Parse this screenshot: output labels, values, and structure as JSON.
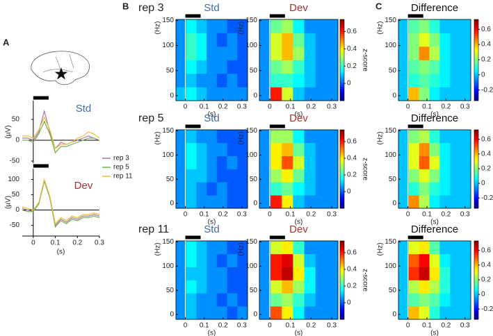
{
  "chart_data": [
    {
      "type": "line",
      "panel": "A",
      "title": "Std",
      "title_color": "#3d6ea8",
      "x": [
        -0.05,
        -0.025,
        0,
        0.025,
        0.05,
        0.075,
        0.1,
        0.125,
        0.15,
        0.175,
        0.2,
        0.225,
        0.25,
        0.275,
        0.3
      ],
      "xlim": [
        -0.05,
        0.3
      ],
      "ylim": [
        -55,
        95
      ],
      "yticks": [
        -50,
        0,
        50
      ],
      "ylabel": "(µV)",
      "legend": true,
      "series": [
        {
          "name": "rep 3",
          "color": "#b070b0",
          "values": [
            5,
            5,
            0,
            20,
            70,
            20,
            -20,
            -5,
            -10,
            -5,
            0,
            5,
            10,
            5,
            0
          ]
        },
        {
          "name": "rep 5",
          "color": "#70b050",
          "values": [
            0,
            0,
            -5,
            15,
            45,
            15,
            -30,
            -15,
            -15,
            -10,
            -5,
            0,
            5,
            5,
            0
          ]
        },
        {
          "name": "rep 11",
          "color": "#e8c030",
          "values": [
            10,
            10,
            5,
            25,
            55,
            25,
            -20,
            -10,
            -10,
            -5,
            5,
            10,
            20,
            15,
            5
          ]
        }
      ]
    },
    {
      "type": "line",
      "title": "Dev",
      "title_color": "#a83232",
      "x": [
        -0.05,
        -0.025,
        0,
        0.025,
        0.05,
        0.075,
        0.1,
        0.125,
        0.15,
        0.175,
        0.2,
        0.225,
        0.25,
        0.275,
        0.3
      ],
      "xlim": [
        -0.05,
        0.3
      ],
      "ylim": [
        -85,
        135
      ],
      "yticks": [
        -50,
        0,
        50,
        100
      ],
      "xticks": [
        0,
        0.1,
        0.2,
        0.3
      ],
      "xlabel": "(s)",
      "ylabel": "(µV)",
      "series": [
        {
          "color": "#b070b0",
          "values": [
            5,
            0,
            -5,
            20,
            95,
            40,
            -50,
            -30,
            -40,
            -25,
            -30,
            -20,
            -20,
            -15,
            -20
          ]
        },
        {
          "color": "#70b050",
          "values": [
            0,
            -5,
            -5,
            20,
            95,
            40,
            -55,
            -35,
            -45,
            -30,
            -35,
            -25,
            -25,
            -20,
            -25
          ]
        },
        {
          "color": "#e8c030",
          "values": [
            10,
            5,
            0,
            25,
            100,
            45,
            -45,
            -25,
            -35,
            -20,
            -25,
            -15,
            -15,
            -10,
            -15
          ]
        }
      ]
    },
    {
      "type": "heatmap",
      "panel": "B",
      "row_label": "rep 3",
      "title": "Std",
      "title_color": "#3d6ea8",
      "xlim": [
        -0.05,
        0.33
      ],
      "ylim": [
        -10,
        152
      ],
      "xticks": [
        0,
        0.1,
        0.2,
        0.3
      ],
      "yticks": [
        0,
        50,
        100,
        150
      ],
      "xlabel": "(s)",
      "ylabel": "(Hz)",
      "colormap": "jet",
      "clim": [
        -0.2,
        0.74
      ],
      "z": [
        [
          0.1,
          0.15,
          0.1,
          0.05,
          0.05,
          0.05,
          0.05
        ],
        [
          0.05,
          0.1,
          0.05,
          0.05,
          0,
          0.05,
          0
        ],
        [
          0.05,
          0.15,
          0.1,
          0.05,
          0.05,
          0,
          0
        ],
        [
          0.05,
          0.2,
          0.15,
          0.05,
          0.05,
          0.05,
          0
        ],
        [
          0.05,
          0.2,
          0.15,
          0.05,
          0,
          0.05,
          0
        ],
        [
          0.05,
          0.15,
          0.1,
          0.05,
          0.05,
          0,
          0
        ]
      ]
    },
    {
      "type": "heatmap",
      "title": "Dev",
      "title_color": "#a83232",
      "xlim": [
        -0.05,
        0.33
      ],
      "ylim": [
        -10,
        152
      ],
      "xticks": [
        0,
        0.1,
        0.2,
        0.3
      ],
      "yticks": [
        0,
        50,
        100,
        150
      ],
      "xlabel": "(s)",
      "ylabel": "(Hz)",
      "colormap": "jet",
      "clim": [
        -0.2,
        0.74
      ],
      "colorbar": true,
      "colorbar_label": "z-score",
      "cticks": [
        0,
        0.2,
        0.4,
        0.6
      ],
      "z": [
        [
          0.05,
          0.6,
          0.35,
          0.1,
          0.05,
          0.05,
          0.05
        ],
        [
          0.05,
          0.2,
          0.2,
          0.15,
          0.1,
          0.05,
          0.05
        ],
        [
          0.05,
          0.25,
          0.3,
          0.2,
          0.1,
          0.05,
          0.05
        ],
        [
          0.05,
          0.35,
          0.45,
          0.3,
          0.1,
          0.05,
          0.05
        ],
        [
          0.05,
          0.35,
          0.45,
          0.25,
          0.1,
          0.05,
          0.05
        ],
        [
          0.05,
          0.25,
          0.3,
          0.15,
          0.05,
          0.05,
          0.05
        ]
      ]
    },
    {
      "type": "heatmap",
      "panel": "C",
      "title": "Difference",
      "title_color": "#111111",
      "xlim": [
        -0.05,
        0.33
      ],
      "ylim": [
        -10,
        152
      ],
      "xticks": [
        0,
        0.1,
        0.2,
        0.3
      ],
      "yticks": [
        0,
        50,
        100,
        150
      ],
      "xlabel": "(s)",
      "ylabel": "(Hz)",
      "colormap": "jet",
      "clim": [
        -0.34,
        0.73
      ],
      "colorbar": true,
      "cticks": [
        -0.2,
        0,
        0.2,
        0.4,
        0.6
      ],
      "z": [
        [
          0,
          0.4,
          0.2,
          0.05,
          0,
          0,
          0
        ],
        [
          0,
          0.1,
          0.15,
          0.1,
          0.05,
          0,
          0
        ],
        [
          0,
          0.15,
          0.2,
          0.15,
          0.05,
          0,
          0
        ],
        [
          0,
          0.2,
          0.45,
          0.25,
          0.05,
          0,
          0
        ],
        [
          0,
          0.2,
          0.3,
          0.2,
          0.05,
          0,
          0
        ],
        [
          0,
          0.15,
          0.2,
          0.1,
          0,
          0,
          0
        ]
      ]
    },
    {
      "type": "heatmap",
      "row_label": "rep 5",
      "title": "Std",
      "title_color": "#3d6ea8",
      "xlim": [
        -0.05,
        0.33
      ],
      "ylim": [
        -10,
        152
      ],
      "xticks": [
        0,
        0.1,
        0.2,
        0.3
      ],
      "yticks": [
        0,
        50,
        100,
        150
      ],
      "xlabel": "(s)",
      "ylabel": "(Hz)",
      "colormap": "jet",
      "clim": [
        -0.2,
        0.74
      ],
      "z": [
        [
          0.05,
          0.1,
          0.05,
          0.05,
          0.05,
          0,
          0
        ],
        [
          0.05,
          0.1,
          0.05,
          0,
          0.05,
          0,
          0
        ],
        [
          0.05,
          0.1,
          0.1,
          0.05,
          0,
          0,
          0
        ],
        [
          0.05,
          0.15,
          0.1,
          0.05,
          0,
          0.05,
          0
        ],
        [
          0.05,
          0.15,
          0.1,
          0.05,
          0.05,
          0,
          0
        ],
        [
          0.05,
          0.1,
          0.05,
          0.05,
          0,
          0,
          0
        ]
      ]
    },
    {
      "type": "heatmap",
      "title": "Dev",
      "title_color": "#a83232",
      "xlim": [
        -0.05,
        0.33
      ],
      "ylim": [
        -10,
        152
      ],
      "xticks": [
        0,
        0.1,
        0.2,
        0.3
      ],
      "yticks": [
        0,
        50,
        100,
        150
      ],
      "xlabel": "(s)",
      "ylabel": "(Hz)",
      "colormap": "jet",
      "clim": [
        -0.2,
        0.74
      ],
      "colorbar": true,
      "colorbar_label": "z-score",
      "cticks": [
        0,
        0.2,
        0.4,
        0.6
      ],
      "z": [
        [
          0.05,
          0.6,
          0.4,
          0.1,
          0.05,
          0.05,
          0.05
        ],
        [
          0.05,
          0.2,
          0.25,
          0.15,
          0.1,
          0.05,
          0.05
        ],
        [
          0.05,
          0.3,
          0.4,
          0.25,
          0.1,
          0.05,
          0.05
        ],
        [
          0.05,
          0.4,
          0.55,
          0.35,
          0.1,
          0.05,
          0.05
        ],
        [
          0.05,
          0.4,
          0.45,
          0.25,
          0.1,
          0.05,
          0.05
        ],
        [
          0.05,
          0.3,
          0.3,
          0.15,
          0.05,
          0.05,
          0.05
        ]
      ]
    },
    {
      "type": "heatmap",
      "title": "Difference",
      "title_color": "#111111",
      "xlim": [
        -0.05,
        0.33
      ],
      "ylim": [
        -10,
        152
      ],
      "xticks": [
        0,
        0.1,
        0.2,
        0.3
      ],
      "yticks": [
        0,
        50,
        100,
        150
      ],
      "xlabel": "(s)",
      "ylabel": "(Hz)",
      "colormap": "jet",
      "clim": [
        -0.34,
        0.73
      ],
      "colorbar": true,
      "cticks": [
        -0.2,
        0,
        0.2,
        0.4,
        0.6
      ],
      "z": [
        [
          0,
          0.45,
          0.25,
          0.05,
          0,
          0,
          0
        ],
        [
          0,
          0.1,
          0.2,
          0.1,
          0.05,
          0,
          0
        ],
        [
          0,
          0.2,
          0.3,
          0.2,
          0.05,
          0,
          0
        ],
        [
          0,
          0.3,
          0.5,
          0.3,
          0.05,
          0,
          0
        ],
        [
          0,
          0.3,
          0.45,
          0.2,
          0.05,
          0,
          0
        ],
        [
          0,
          0.2,
          0.25,
          0.1,
          0,
          0,
          0
        ]
      ]
    },
    {
      "type": "heatmap",
      "row_label": "rep 11",
      "title": "Std",
      "title_color": "#3d6ea8",
      "xlim": [
        -0.05,
        0.33
      ],
      "ylim": [
        -10,
        152
      ],
      "xticks": [
        0,
        0.1,
        0.2,
        0.3
      ],
      "yticks": [
        0,
        50,
        100,
        150
      ],
      "xlabel": "(s)",
      "ylabel": "(Hz)",
      "colormap": "jet",
      "clim": [
        -0.2,
        0.74
      ],
      "z": [
        [
          0.05,
          0.1,
          0.05,
          0.05,
          0.05,
          0,
          0.05
        ],
        [
          0.05,
          0.1,
          0.05,
          0.05,
          0,
          0.05,
          0
        ],
        [
          0.05,
          0.15,
          0.1,
          0.05,
          0.05,
          0,
          0
        ],
        [
          0.05,
          0.1,
          0.1,
          0.05,
          0.05,
          0,
          0
        ],
        [
          0.05,
          0.15,
          0.1,
          0.05,
          0,
          0.05,
          0
        ],
        [
          0.05,
          0.15,
          0.1,
          0.05,
          0.05,
          0,
          0
        ]
      ]
    },
    {
      "type": "heatmap",
      "title": "Dev",
      "title_color": "#a83232",
      "xlim": [
        -0.05,
        0.33
      ],
      "ylim": [
        -10,
        152
      ],
      "xticks": [
        0,
        0.1,
        0.2,
        0.3
      ],
      "yticks": [
        0,
        50,
        100,
        150
      ],
      "xlabel": "(s)",
      "ylabel": "(Hz)",
      "colormap": "jet",
      "clim": [
        -0.2,
        0.74
      ],
      "colorbar": true,
      "colorbar_label": "z-score",
      "cticks": [
        0,
        0.2,
        0.4,
        0.6
      ],
      "z": [
        [
          0.05,
          0.55,
          0.4,
          0.15,
          0.05,
          0.05,
          0.05
        ],
        [
          0.05,
          0.25,
          0.3,
          0.2,
          0.1,
          0.05,
          0.05
        ],
        [
          0.05,
          0.35,
          0.45,
          0.3,
          0.15,
          0.05,
          0.05
        ],
        [
          0.05,
          0.6,
          0.68,
          0.4,
          0.15,
          0.05,
          0.05
        ],
        [
          0.05,
          0.6,
          0.65,
          0.35,
          0.1,
          0.05,
          0.05
        ],
        [
          0.05,
          0.35,
          0.4,
          0.2,
          0.05,
          0.05,
          0.05
        ]
      ]
    },
    {
      "type": "heatmap",
      "title": "Difference",
      "title_color": "#111111",
      "xlim": [
        -0.05,
        0.33
      ],
      "ylim": [
        -10,
        152
      ],
      "xticks": [
        0,
        0.1,
        0.2,
        0.3
      ],
      "yticks": [
        0,
        50,
        100,
        150
      ],
      "xlabel": "(s)",
      "ylabel": "(Hz)",
      "colormap": "jet",
      "clim": [
        -0.34,
        0.73
      ],
      "colorbar": true,
      "cticks": [
        -0.2,
        0,
        0.2,
        0.4,
        0.6
      ],
      "z": [
        [
          0,
          0.4,
          0.3,
          0.1,
          0,
          0,
          0
        ],
        [
          0,
          0.15,
          0.2,
          0.15,
          0.05,
          0,
          0
        ],
        [
          0,
          0.25,
          0.35,
          0.25,
          0.1,
          0,
          0
        ],
        [
          0,
          0.55,
          0.65,
          0.35,
          0.1,
          0,
          0
        ],
        [
          0,
          0.5,
          0.6,
          0.3,
          0.05,
          0,
          0
        ],
        [
          0,
          0.3,
          0.35,
          0.15,
          0,
          0,
          0
        ]
      ]
    }
  ]
}
